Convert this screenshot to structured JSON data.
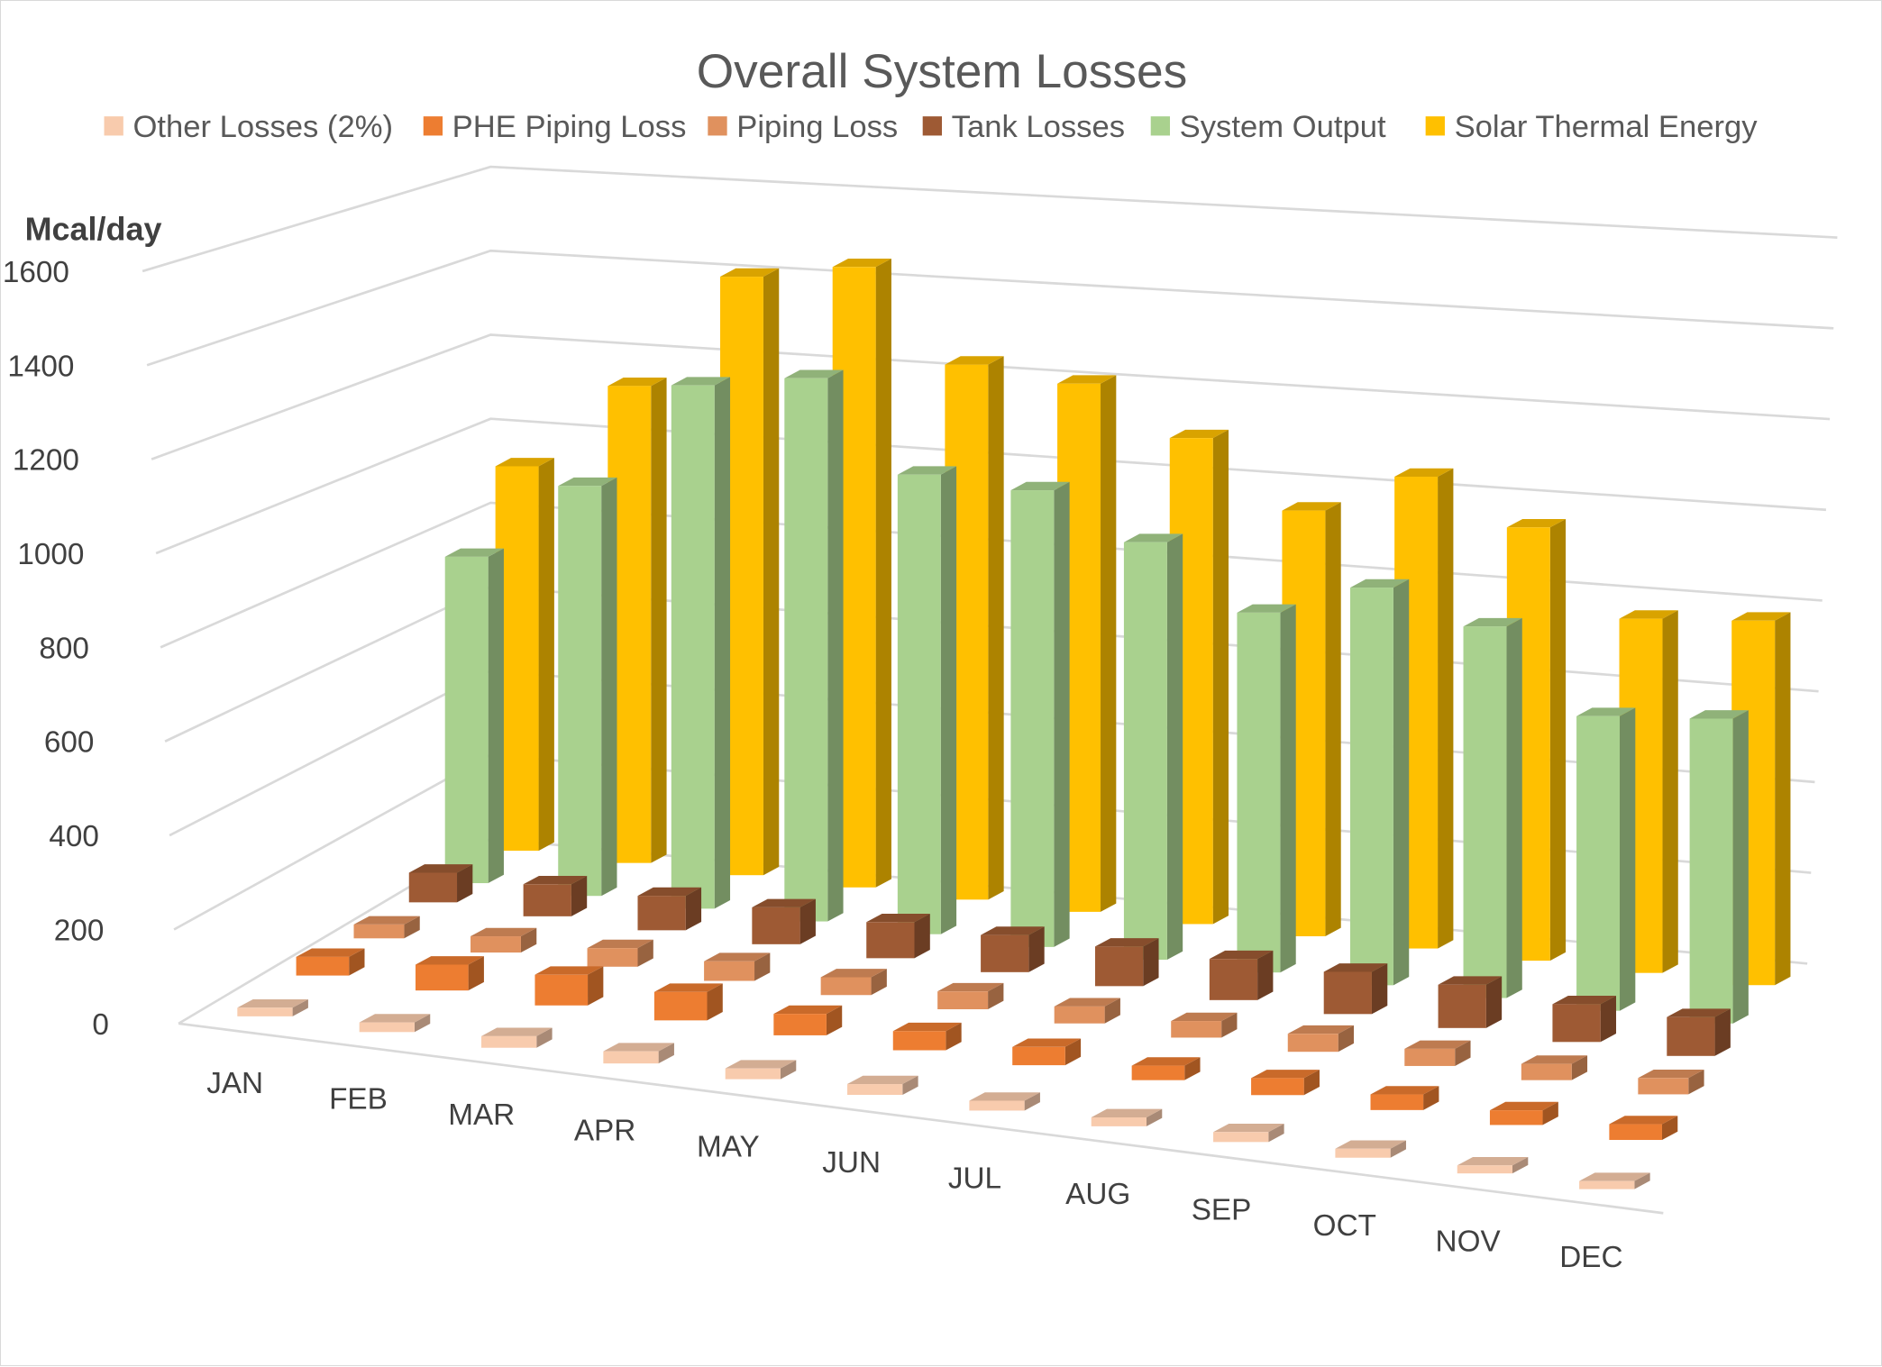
{
  "chart_data": {
    "type": "bar",
    "subtype": "3d-column",
    "title": "Overall System Losses",
    "ylabel": "Mcal/day",
    "xlabel": "",
    "ylim": [
      0,
      1600
    ],
    "yticks": [
      "0",
      "200",
      "400",
      "600",
      "800",
      "1000",
      "1200",
      "1400",
      "1600"
    ],
    "grid": true,
    "legend_position": "top",
    "categories": [
      "JAN",
      "FEB",
      "MAR",
      "APR",
      "MAY",
      "JUN",
      "JUL",
      "AUG",
      "SEP",
      "OCT",
      "NOV",
      "DEC"
    ],
    "series": [
      {
        "name": "Other Losses (2%)",
        "color": "#F8CBAD",
        "values": [
          18,
          20,
          24,
          25,
          22,
          22,
          20,
          18,
          20,
          18,
          16,
          16
        ]
      },
      {
        "name": "PHE Piping Loss",
        "color": "#ED7D31",
        "values": [
          40,
          55,
          65,
          60,
          45,
          40,
          38,
          30,
          35,
          32,
          30,
          32
        ]
      },
      {
        "name": "Piping Loss",
        "color": "#E0915E",
        "values": [
          30,
          35,
          40,
          42,
          38,
          38,
          36,
          35,
          38,
          36,
          34,
          34
        ]
      },
      {
        "name": "Tank Losses",
        "color": "#9E5A34",
        "values": [
          65,
          70,
          75,
          80,
          78,
          80,
          85,
          88,
          90,
          92,
          80,
          82
        ]
      },
      {
        "name": "System Output",
        "color": "#A9D18E",
        "values": [
          735,
          920,
          1170,
          1210,
          1020,
          1010,
          920,
          790,
          870,
          810,
          640,
          660
        ]
      },
      {
        "name": "Solar Thermal Energy",
        "color": "#FFC000",
        "values": [
          890,
          1100,
          1375,
          1420,
          1220,
          1200,
          1100,
          960,
          1060,
          970,
          790,
          810
        ]
      }
    ]
  }
}
